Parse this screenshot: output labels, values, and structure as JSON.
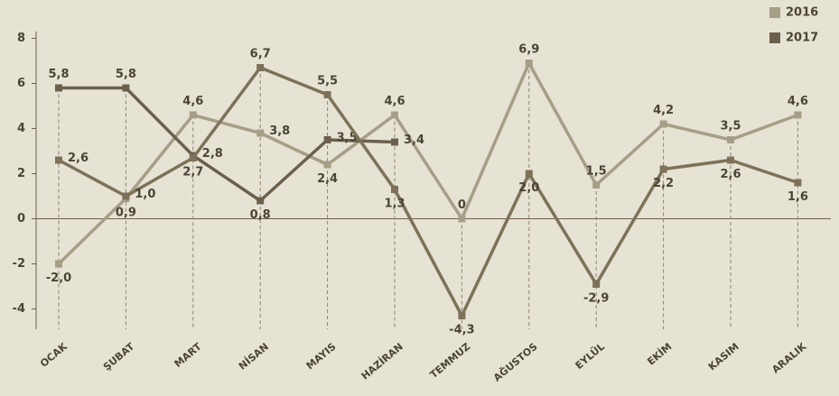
{
  "chart_data": {
    "type": "line",
    "categories": [
      "OCAK",
      "ŞUBAT",
      "MART",
      "NİSAN",
      "MAYIS",
      "HAZİRAN",
      "TEMMUZ",
      "AĞUSTOS",
      "EYLÜL",
      "EKİM",
      "KASIM",
      "ARALIK"
    ],
    "series": [
      {
        "name": "2016",
        "color": "#a69e86",
        "values": [
          -2.0,
          0.9,
          4.6,
          3.8,
          2.4,
          4.6,
          0,
          6.9,
          1.5,
          4.2,
          3.5,
          4.6
        ],
        "value_labels": [
          "-2,0",
          "0,9",
          "4,6",
          "3,8",
          "2,4",
          "4,6",
          "0",
          "6,9",
          "1,5",
          "4,2",
          "3,5",
          "4,6"
        ]
      },
      {
        "name": "2017",
        "color": "#6b604c",
        "values": [
          5.8,
          5.8,
          2.8,
          0.8,
          3.5,
          3.4,
          null,
          null,
          null,
          null,
          null,
          null
        ],
        "value_labels": [
          "5,8",
          "5,8",
          "2,8",
          "0,8",
          "3,5",
          "3,4",
          null,
          null,
          null,
          null,
          null,
          null
        ]
      },
      {
        "color": "#7d7159",
        "values": [
          2.6,
          1.0,
          2.7,
          6.7,
          5.5,
          1.3,
          -4.3,
          2.0,
          -2.9,
          2.2,
          2.6,
          1.6
        ],
        "value_labels": [
          "2,6",
          "1,0",
          "2,7",
          "6,7",
          "5,5",
          "1,3",
          "-4,3",
          "2,0",
          "-2,9",
          "2,2",
          "2,6",
          "1,6"
        ]
      }
    ],
    "ylim": [
      -4.9,
      8.3
    ],
    "yticks": [
      -4,
      -2,
      0,
      2,
      4,
      6,
      8
    ]
  }
}
